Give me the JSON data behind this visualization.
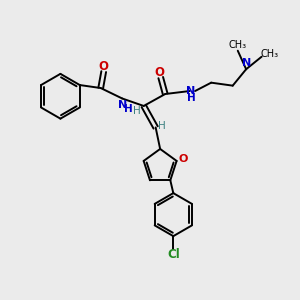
{
  "background_color": "#ebebeb",
  "bond_color": "#000000",
  "N_color": "#0000cc",
  "O_color": "#cc0000",
  "Cl_color": "#228B22",
  "H_color": "#3a8080",
  "figsize": [
    3.0,
    3.0
  ],
  "dpi": 100,
  "lw": 1.4,
  "fs": 7.5,
  "xlim": [
    0,
    10
  ],
  "ylim": [
    0,
    10
  ]
}
